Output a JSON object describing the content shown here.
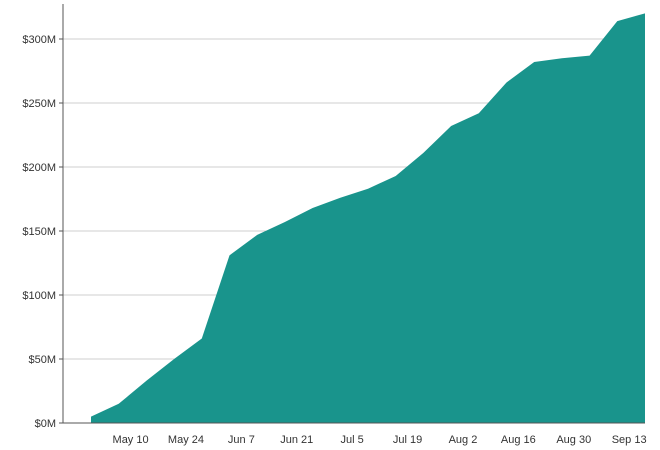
{
  "chart_data": {
    "type": "area",
    "title": "",
    "xlabel": "",
    "ylabel": "",
    "grid": true,
    "colors": {
      "area": "#19948c",
      "grid": "#cfcfcf",
      "axis": "#555555",
      "text": "#333333"
    },
    "x": [
      "Apr 30",
      "May 7",
      "May 14",
      "May 21",
      "May 28",
      "Jun 4",
      "Jun 11",
      "Jun 18",
      "Jun 25",
      "Jul 2",
      "Jul 9",
      "Jul 16",
      "Jul 23",
      "Jul 30",
      "Aug 6",
      "Aug 13",
      "Aug 20",
      "Aug 27",
      "Sep 3",
      "Sep 10",
      "Sep 17"
    ],
    "values": [
      5,
      15,
      33,
      50,
      66,
      131,
      147,
      157,
      168,
      176,
      183,
      193,
      211,
      232,
      242,
      266,
      282,
      285,
      287,
      314,
      320
    ],
    "ylim": [
      0,
      330
    ],
    "yticks": [
      0,
      50,
      100,
      150,
      200,
      250,
      300
    ],
    "ytick_labels": [
      "$0M",
      "$50M",
      "$100M",
      "$150M",
      "$200M",
      "$250M",
      "$300M"
    ],
    "xticks": [
      "May 10",
      "May 24",
      "Jun 7",
      "Jun 21",
      "Jul 5",
      "Jul 19",
      "Aug 2",
      "Aug 16",
      "Aug 30",
      "Sep 13"
    ],
    "xtick_labels": [
      "May 10",
      "May 24",
      "Jun 7",
      "Jun 21",
      "Jul 5",
      "Jul 19",
      "Aug 2",
      "Aug 16",
      "Aug 30",
      "Sep 13"
    ]
  }
}
